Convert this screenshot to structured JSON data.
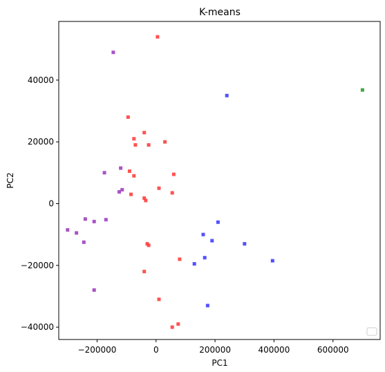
{
  "chart_data": {
    "type": "scatter",
    "title": "K-means",
    "xlabel": "PC1",
    "ylabel": "PC2",
    "xlim": [
      -330000,
      760000
    ],
    "ylim": [
      -44000,
      59000
    ],
    "x_ticks": [
      {
        "value": -200000,
        "label": "−200000"
      },
      {
        "value": 0,
        "label": "0"
      },
      {
        "value": 200000,
        "label": "200000"
      },
      {
        "value": 400000,
        "label": "400000"
      },
      {
        "value": 600000,
        "label": "600000"
      }
    ],
    "y_ticks": [
      {
        "value": -40000,
        "label": "−40000"
      },
      {
        "value": -20000,
        "label": "−20000"
      },
      {
        "value": 0,
        "label": "0"
      },
      {
        "value": 20000,
        "label": "20000"
      },
      {
        "value": 40000,
        "label": "40000"
      }
    ],
    "grid": false,
    "legend_position": "bottom-right",
    "series": [
      {
        "color": "#ff3f3f",
        "points": [
          [
            5000,
            54000
          ],
          [
            -95000,
            28000
          ],
          [
            -40000,
            23000
          ],
          [
            -75000,
            21000
          ],
          [
            30000,
            20000
          ],
          [
            -70000,
            19000
          ],
          [
            -25000,
            19000
          ],
          [
            -90000,
            10500
          ],
          [
            -75000,
            9000
          ],
          [
            60000,
            9500
          ],
          [
            10000,
            5000
          ],
          [
            -85000,
            3000
          ],
          [
            55000,
            3500
          ],
          [
            -40000,
            1800
          ],
          [
            -35000,
            1000
          ],
          [
            -30000,
            -13000
          ],
          [
            -25000,
            -13500
          ],
          [
            80000,
            -18000
          ],
          [
            -40000,
            -22000
          ],
          [
            10000,
            -31000
          ],
          [
            75000,
            -39000
          ],
          [
            55000,
            -40000
          ]
        ]
      },
      {
        "color": "#3f3fff",
        "points": [
          [
            240000,
            35000
          ],
          [
            210000,
            -6000
          ],
          [
            160000,
            -10000
          ],
          [
            190000,
            -12000
          ],
          [
            300000,
            -13000
          ],
          [
            165000,
            -17500
          ],
          [
            130000,
            -19500
          ],
          [
            395000,
            -18500
          ],
          [
            175000,
            -33000
          ]
        ]
      },
      {
        "color": "#2ca02c",
        "points": [
          [
            700000,
            36800
          ]
        ]
      },
      {
        "color": "#a040c0",
        "points": [
          [
            -145000,
            49000
          ],
          [
            -175000,
            10000
          ],
          [
            -120000,
            11500
          ],
          [
            -115000,
            4500
          ],
          [
            -125000,
            3800
          ],
          [
            -240000,
            -5000
          ],
          [
            -170000,
            -5200
          ],
          [
            -210000,
            -5800
          ],
          [
            -300000,
            -8500
          ],
          [
            -270000,
            -9500
          ],
          [
            -245000,
            -12500
          ],
          [
            -210000,
            -28000
          ]
        ]
      }
    ]
  }
}
